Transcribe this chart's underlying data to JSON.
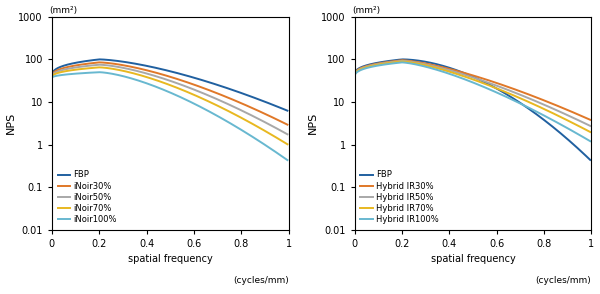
{
  "left_legend": [
    "FBP",
    "iNoir30%",
    "iNoir50%",
    "iNoir70%",
    "iNoir100%"
  ],
  "right_legend": [
    "FBP",
    "Hybrid IR30%",
    "Hybrid IR50%",
    "Hybrid IR70%",
    "Hybrid IR100%"
  ],
  "left_colors": [
    "#2060a0",
    "#e07828",
    "#a8a8a8",
    "#e8b820",
    "#68b8d0"
  ],
  "right_colors": [
    "#2060a0",
    "#e07828",
    "#a8a8a8",
    "#e8b820",
    "#68b8d0"
  ],
  "ylabel": "NPS",
  "xlabel": "spatial frequency",
  "xunit": "(cycles/mm)",
  "yunit": "(mm²)",
  "ylim_log": [
    0.01,
    1000
  ],
  "xlim": [
    0,
    1.0
  ],
  "xticks": [
    0,
    0.2,
    0.4,
    0.6,
    0.8,
    1.0
  ],
  "yticks_vals": [
    0.01,
    0.1,
    1,
    10,
    100,
    1000
  ],
  "yticks_labels": [
    "0.01",
    "0.1",
    "1",
    "10",
    "100",
    "1000"
  ],
  "background": "#ffffff"
}
